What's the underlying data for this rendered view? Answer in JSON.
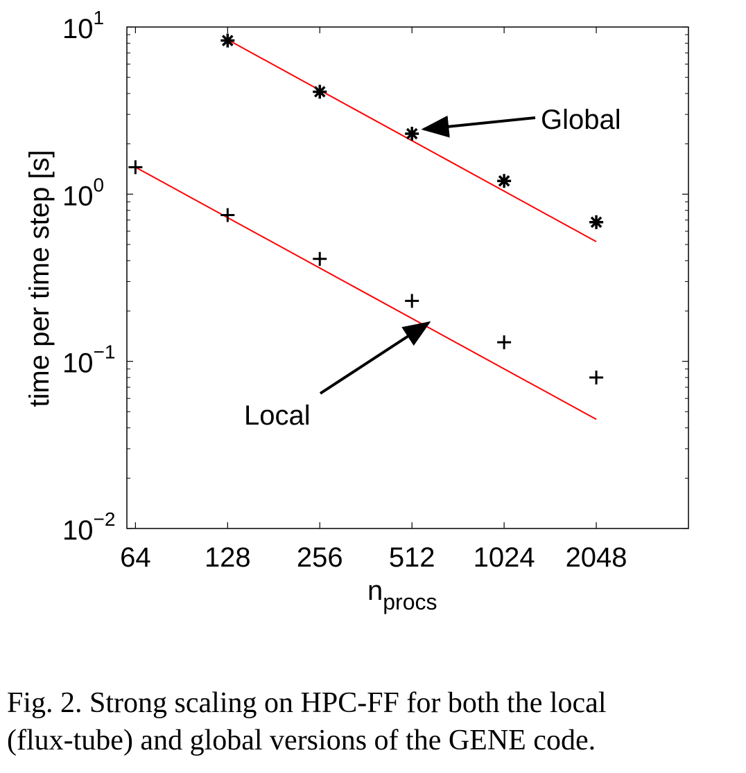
{
  "chart_data": {
    "type": "scatter",
    "x_scale": "log2",
    "y_scale": "log10",
    "xlabel": "n",
    "xlabel_sub": "procs",
    "ylabel": "time per time step [s]",
    "x_ticks": [
      64,
      128,
      256,
      512,
      1024,
      2048
    ],
    "x_tick_labels": [
      "64",
      "128",
      "256",
      "512",
      "1024",
      "2048"
    ],
    "xlim": [
      60,
      4096
    ],
    "ylim": [
      0.01,
      10
    ],
    "y_ticks": [
      {
        "value": 10,
        "base": "10",
        "exp": "1"
      },
      {
        "value": 1,
        "base": "10",
        "exp": "0"
      },
      {
        "value": 0.1,
        "base": "10",
        "exp": "−1"
      },
      {
        "value": 0.01,
        "base": "10",
        "exp": "−2"
      }
    ],
    "grid": false,
    "series": [
      {
        "name": "Global",
        "marker": "asterisk",
        "x": [
          128,
          256,
          512,
          1024,
          2048
        ],
        "y": [
          8.3,
          4.1,
          2.3,
          1.2,
          0.68
        ]
      },
      {
        "name": "Local",
        "marker": "plus",
        "x": [
          64,
          128,
          256,
          512,
          1024,
          2048
        ],
        "y": [
          1.45,
          0.75,
          0.41,
          0.23,
          0.13,
          0.08
        ]
      }
    ],
    "fit_lines": [
      {
        "series": "Global",
        "color": "#ff0000",
        "x": [
          128,
          2048
        ],
        "y": [
          8.4,
          0.52
        ]
      },
      {
        "series": "Local",
        "color": "#ff0000",
        "x": [
          64,
          2048
        ],
        "y": [
          1.45,
          0.045
        ]
      }
    ],
    "annotations": [
      {
        "text": "Global",
        "points_to": {
          "x": 560,
          "y": 2.45
        }
      },
      {
        "text": "Local",
        "points_to": {
          "x": 580,
          "y": 0.17
        }
      }
    ]
  },
  "caption": {
    "line1": "Fig. 2. Strong scaling on HPC-FF for both the local",
    "line2": "(flux-tube) and global versions of the GENE code."
  }
}
